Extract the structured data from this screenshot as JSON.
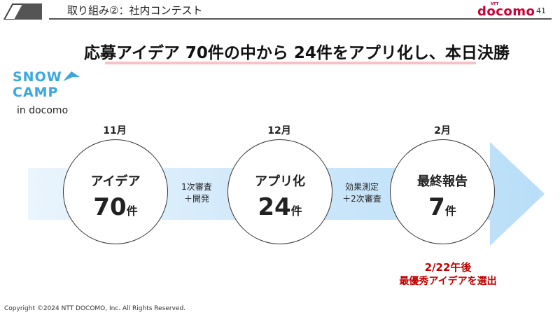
{
  "header": {
    "section_label": "取り組み②：社内コンテスト",
    "brand_ntt": "NTT",
    "brand": "docomo",
    "page_number": "41"
  },
  "headline": "応募アイデア 70件の中から 24件をアプリ化し、本日決勝",
  "program_logo": {
    "line1": "SNOW",
    "line2": "CAMP",
    "subtitle": "in docomo",
    "color": "#3aa7e0"
  },
  "timeline": {
    "stages": [
      {
        "month": "11月",
        "title": "アイデア",
        "count": "70",
        "unit": "件"
      },
      {
        "month": "12月",
        "title": "アプリ化",
        "count": "24",
        "unit": "件"
      },
      {
        "month": "2月",
        "title": "最終報告",
        "count": "7",
        "unit": "件"
      }
    ],
    "steps": [
      {
        "line1": "1次審査",
        "line2": "＋開発"
      },
      {
        "line1": "効果測定",
        "line2": "＋2次審査"
      }
    ],
    "arrow_color": "#cfe9fb"
  },
  "result_note": {
    "line1": "2/22午後",
    "line2": "最優秀アイデアを選出",
    "color": "#c00000"
  },
  "copyright": "Copyright ©2024 NTT DOCOMO, Inc. All Rights Reserved."
}
